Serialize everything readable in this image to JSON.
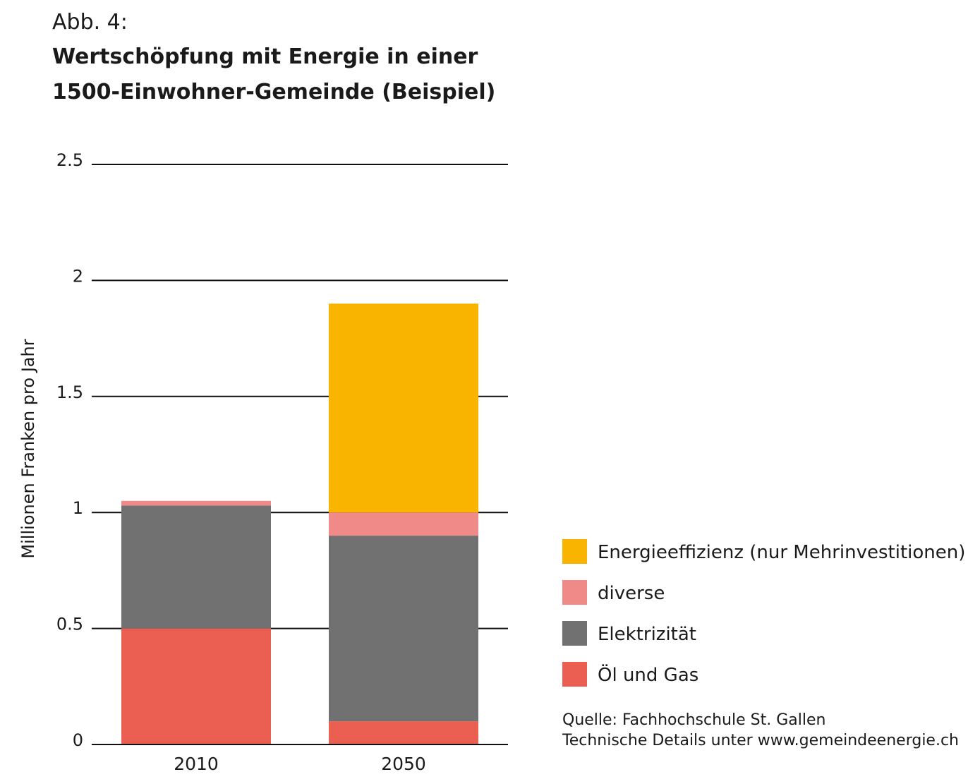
{
  "figure_label": "Abb. 4:",
  "title_line1": "Wertschöpfung mit Energie in einer",
  "title_line2": "1500-Einwohner-Gemeinde (Beispiel)",
  "source_line1": "Quelle: Fachhochschule St. Gallen",
  "source_line2": "Technische Details unter www.gemeindeenergie.ch",
  "chart_data": {
    "type": "bar",
    "stacked": true,
    "categories": [
      "2010",
      "2050"
    ],
    "series": [
      {
        "name": "Öl und Gas",
        "values": [
          0.5,
          0.1
        ],
        "color": "#eb5f52"
      },
      {
        "name": "Elektrizität",
        "values": [
          0.53,
          0.8
        ],
        "color": "#717171"
      },
      {
        "name": "diverse",
        "values": [
          0.02,
          0.1
        ],
        "color": "#f08a88"
      },
      {
        "name": "Energieeffizienz (nur Mehrinvestitionen)",
        "values": [
          0.0,
          0.9
        ],
        "color": "#f9b400"
      }
    ],
    "ylabel": "Millionen Franken pro Jahr",
    "ylim": [
      0,
      2.5
    ],
    "yticks": [
      "0",
      "0.5",
      "1",
      "1.5",
      "2",
      "2.5"
    ],
    "grid": true,
    "legend_position": "right",
    "legend_order": [
      "Energieeffizienz (nur Mehrinvestitionen)",
      "diverse",
      "Elektrizität",
      "Öl und Gas"
    ]
  }
}
